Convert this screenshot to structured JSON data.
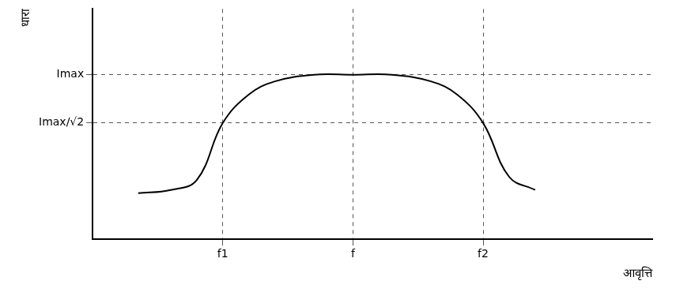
{
  "chart_data": {
    "type": "line",
    "x_label": "आवृत्ति",
    "y_label": "धारा",
    "x": [
      0.35,
      0.6,
      0.8,
      1.0,
      1.2,
      1.4,
      1.7,
      2.0,
      2.3,
      2.6,
      2.8,
      3.0,
      3.2,
      3.4
    ],
    "values": [
      0.28,
      0.3,
      0.36,
      0.707,
      0.88,
      0.96,
      1.0,
      1.0,
      1.0,
      0.96,
      0.88,
      0.707,
      0.38,
      0.3
    ],
    "color": "#000000",
    "xlim": [
      0,
      4.3
    ],
    "ylim": [
      0,
      1.4
    ],
    "xticks": [
      {
        "value": 1,
        "label": "f1"
      },
      {
        "value": 2,
        "label": "f"
      },
      {
        "value": 3,
        "label": "f2"
      }
    ],
    "yticks": [
      {
        "value": 0.707,
        "label": "Imax/√2"
      },
      {
        "value": 1,
        "label": "Imax"
      }
    ],
    "grid": true
  }
}
